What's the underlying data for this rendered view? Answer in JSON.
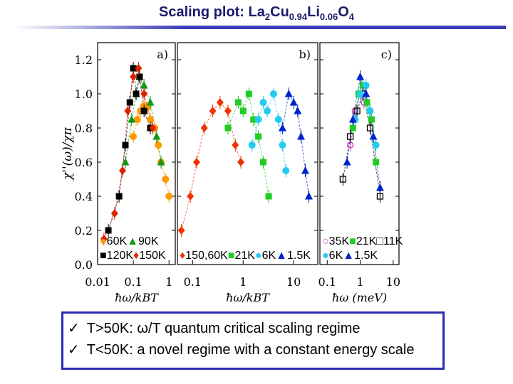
{
  "title": {
    "main": "Scaling plot: La",
    "s1": "2",
    "cu": "Cu",
    "s2": "0.94",
    "li": "Li",
    "s3": "0.06",
    "o": "O",
    "s4": "4"
  },
  "chart_data": {
    "type": "scatter",
    "ylabel": "χ''(ω)/χπ",
    "yticks": [
      "0.0",
      "0.2",
      "0.4",
      "0.6",
      "0.8",
      "1.0",
      "1.2"
    ],
    "ylim": [
      0,
      1.3
    ],
    "panels": [
      {
        "label": "a)",
        "xlabel": "ħω/kBT",
        "xticks": [
          "0.01",
          "0.1",
          "1"
        ],
        "xlim": [
          0.01,
          1.5
        ],
        "legend": [
          "60K",
          "90K",
          "120K",
          "150K"
        ],
        "series": [
          {
            "name": "60K",
            "color": "#ff9900",
            "marker": "circle",
            "x": [
              0.1,
              0.13,
              0.16,
              0.2,
              0.25,
              0.3,
              0.4,
              0.5,
              0.6,
              0.8,
              1.0
            ],
            "y": [
              0.75,
              0.85,
              0.9,
              0.93,
              0.92,
              0.85,
              0.8,
              0.7,
              0.6,
              0.5,
              0.4
            ]
          },
          {
            "name": "90K",
            "color": "#119911",
            "marker": "triangle",
            "x": [
              0.06,
              0.09,
              0.12,
              0.15,
              0.2,
              0.3,
              0.45,
              0.6
            ],
            "y": [
              0.6,
              0.85,
              1.0,
              1.1,
              1.05,
              0.95,
              0.75,
              0.6
            ]
          },
          {
            "name": "120K",
            "color": "#000000",
            "marker": "square",
            "x": [
              0.02,
              0.04,
              0.06,
              0.08,
              0.1,
              0.12,
              0.15,
              0.2,
              0.3
            ],
            "y": [
              0.2,
              0.4,
              0.7,
              0.95,
              1.15,
              1.0,
              1.1,
              0.9,
              0.8
            ]
          },
          {
            "name": "150K",
            "color": "#dd2200",
            "marker": "diamond",
            "x": [
              0.015,
              0.03,
              0.05,
              0.07,
              0.1,
              0.14,
              0.2,
              0.35
            ],
            "y": [
              0.15,
              0.3,
              0.55,
              0.9,
              1.1,
              1.15,
              1.0,
              0.8
            ]
          }
        ]
      },
      {
        "label": "b)",
        "xlabel": "ħω/kBT",
        "xticks": [
          "0.1",
          "1",
          "10"
        ],
        "xlim": [
          0.05,
          30
        ],
        "legend": [
          "150,60K",
          "21K",
          "6K",
          "1.5K"
        ],
        "series": [
          {
            "name": "150,60K",
            "color": "#ee3300",
            "marker": "diamond",
            "x": [
              0.06,
              0.09,
              0.12,
              0.17,
              0.25,
              0.35,
              0.5,
              0.7,
              0.9
            ],
            "y": [
              0.2,
              0.4,
              0.6,
              0.8,
              0.9,
              0.95,
              0.9,
              0.7,
              0.6
            ]
          },
          {
            "name": "21K",
            "color": "#22cc22",
            "marker": "square",
            "x": [
              0.5,
              0.8,
              1.0,
              1.3,
              1.6,
              2.0,
              2.5,
              3.2
            ],
            "y": [
              0.8,
              0.95,
              0.9,
              1.0,
              0.85,
              0.75,
              0.6,
              0.4
            ]
          },
          {
            "name": "6K",
            "color": "#22ccee",
            "marker": "circle",
            "x": [
              1.5,
              2.0,
              2.5,
              3.0,
              4.0,
              5.0,
              6.0,
              7.0
            ],
            "y": [
              0.7,
              0.85,
              0.95,
              0.9,
              1.0,
              0.85,
              0.7,
              0.55
            ]
          },
          {
            "name": "1.5K",
            "color": "#0022cc",
            "marker": "triangle",
            "x": [
              6,
              8,
              10,
              12,
              14,
              17,
              20
            ],
            "y": [
              0.8,
              1.0,
              0.95,
              0.9,
              0.75,
              0.55,
              0.4
            ]
          }
        ]
      },
      {
        "label": "c)",
        "xlabel": "ħω (meV)",
        "xticks": [
          "0.1",
          "1",
          "10"
        ],
        "xlim": [
          0.06,
          15
        ],
        "legend": [
          "35K",
          "21K",
          "11K",
          "6K",
          "1.5K"
        ],
        "series": [
          {
            "name": "35K",
            "color": "#cc44cc",
            "marker": "ocircle",
            "x": [
              0.5,
              0.7,
              1.0,
              1.3
            ],
            "y": [
              0.7,
              0.9,
              1.0,
              0.95
            ]
          },
          {
            "name": "21K",
            "color": "#22cc22",
            "marker": "square",
            "x": [
              0.6,
              0.9,
              1.2,
              1.6,
              2.2,
              3.0
            ],
            "y": [
              0.8,
              1.0,
              1.05,
              0.95,
              0.85,
              0.6
            ]
          },
          {
            "name": "11K",
            "color": "#000000",
            "marker": "osquare",
            "x": [
              0.3,
              0.5,
              0.8,
              1.2,
              2.0,
              4.0
            ],
            "y": [
              0.5,
              0.75,
              0.9,
              1.0,
              0.8,
              0.4
            ]
          },
          {
            "name": "6K",
            "color": "#22ccee",
            "marker": "circle",
            "x": [
              0.7,
              1.0,
              1.5,
              2.0,
              3.0
            ],
            "y": [
              0.85,
              1.0,
              1.05,
              0.9,
              0.7
            ]
          },
          {
            "name": "1.5K",
            "color": "#0022cc",
            "marker": "triangle",
            "x": [
              0.4,
              0.6,
              1.0,
              1.5,
              2.5,
              4.0
            ],
            "y": [
              0.6,
              0.85,
              1.1,
              1.0,
              0.75,
              0.45
            ]
          }
        ]
      }
    ]
  },
  "bullets": [
    {
      "check": "✓",
      "text": "T>50K: ω/T quantum critical scaling regime"
    },
    {
      "check": "✓",
      "text": "T<50K: a novel regime with a constant energy scale"
    }
  ]
}
